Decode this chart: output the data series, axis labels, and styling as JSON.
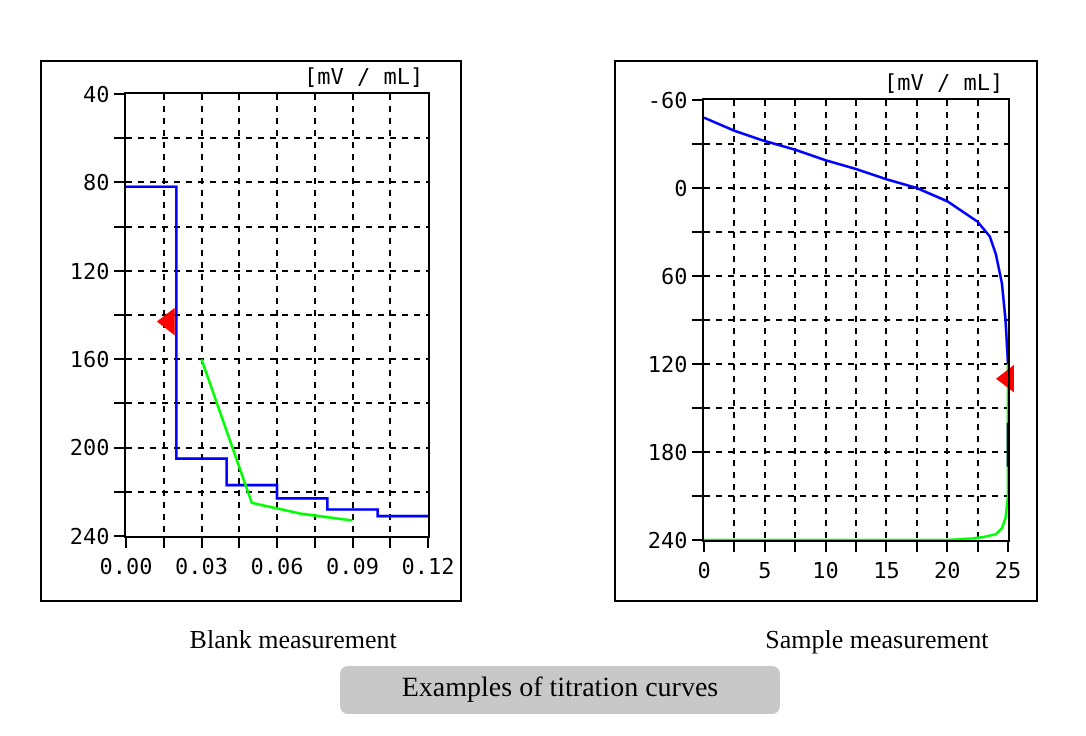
{
  "chart_data": [
    {
      "type": "line",
      "title": "Blank measurement",
      "ylabel": "[mV / mL]",
      "annotations": [
        "Examples of titration curves"
      ],
      "xlim": [
        0,
        0.12
      ],
      "ylim": [
        240,
        40
      ],
      "xticks": [
        {
          "value": 0,
          "label": "0.00"
        },
        {
          "value": 0.015,
          "label": null
        },
        {
          "value": 0.03,
          "label": "0.03"
        },
        {
          "value": 0.045,
          "label": null
        },
        {
          "value": 0.06,
          "label": "0.06"
        },
        {
          "value": 0.075,
          "label": null
        },
        {
          "value": 0.09,
          "label": "0.09"
        },
        {
          "value": 0.105,
          "label": null
        },
        {
          "value": 0.12,
          "label": "0.12"
        }
      ],
      "yticks": [
        40,
        {
          "value": 60,
          "label": null
        },
        80,
        {
          "value": 100,
          "label": null
        },
        120,
        {
          "value": 140,
          "label": null
        },
        160,
        {
          "value": 180,
          "label": null
        },
        200,
        {
          "value": 220,
          "label": null
        },
        240
      ],
      "grid": true,
      "line_style": "solid",
      "series": [
        {
          "type": "step",
          "color": "#0000ff",
          "x": [
            0,
            0.02,
            0.04,
            0.06,
            0.08,
            0.1,
            0.12
          ],
          "values": [
            82,
            205,
            217,
            223,
            228,
            231,
            231
          ]
        },
        {
          "color": "#00ff00",
          "x": [
            0.03,
            0.05,
            0.07,
            0.09
          ],
          "values": [
            160,
            225,
            230,
            233
          ]
        },
        {
          "type": "scatter",
          "marker": "triangle",
          "color": "#ff0000",
          "x": [
            0.017
          ],
          "values": [
            143
          ]
        }
      ]
    },
    {
      "type": "line",
      "title": "Sample measurement",
      "ylabel": "[mV / mL]",
      "xlim": [
        0,
        25
      ],
      "ylim": [
        240,
        -60
      ],
      "xticks": [
        0,
        {
          "value": 2.5,
          "label": null
        },
        5,
        {
          "value": 7.5,
          "label": null
        },
        10,
        {
          "value": 12.5,
          "label": null
        },
        15,
        {
          "value": 17.5,
          "label": null
        },
        20,
        {
          "value": 22.5,
          "label": null
        },
        25
      ],
      "yticks": [
        -60,
        {
          "value": -30,
          "label": null
        },
        0,
        {
          "value": 30,
          "label": null
        },
        60,
        {
          "value": 90,
          "label": null
        },
        120,
        {
          "value": 150,
          "label": null
        },
        180,
        {
          "value": 210,
          "label": null
        },
        240
      ],
      "grid": true,
      "line_style": "solid",
      "series": [
        {
          "color": "#0000ff",
          "x": [
            0,
            2.5,
            5,
            7.5,
            10,
            12.5,
            15,
            17.5,
            20,
            22.5,
            23.5,
            24,
            24.5,
            24.8,
            25
          ],
          "values": [
            -48,
            -39,
            -32,
            -26,
            -19,
            -13,
            -6,
            0,
            9,
            23,
            33,
            45,
            65,
            90,
            120
          ]
        },
        {
          "color": "#00ff00",
          "x": [
            25,
            25,
            24.8,
            24.5,
            24,
            23,
            22,
            20,
            10,
            0
          ],
          "values": [
            120,
            210,
            225,
            232,
            236,
            238,
            239,
            240,
            240,
            240
          ]
        },
        {
          "color": "#000080",
          "x": [
            25,
            25
          ],
          "values": [
            160,
            190
          ]
        },
        {
          "type": "scatter",
          "marker": "triangle",
          "color": "#ff0000",
          "x": [
            25
          ],
          "values": [
            130
          ]
        }
      ]
    }
  ]
}
